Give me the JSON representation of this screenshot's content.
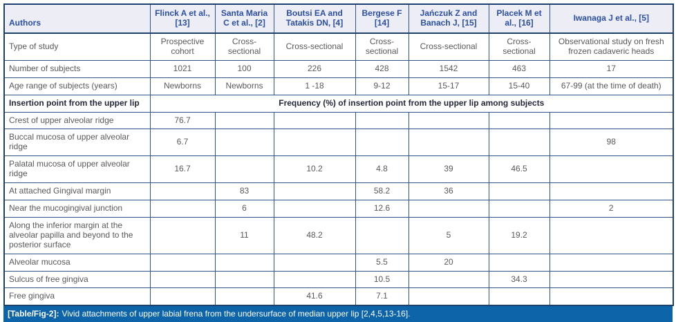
{
  "table": {
    "header": [
      "Authors",
      "Flinck A et al., [13]",
      "Santa Maria C et al., [2]",
      "Boutsi EA and Tatakis DN, [4]",
      "Bergese F [14]",
      "Jańczuk Z and Banach J, [15]",
      "Placek M et al., [16]",
      "Iwanaga J et al., [5]"
    ],
    "rows": [
      {
        "label": "Type of study",
        "cells": [
          "Prospective cohort",
          "Cross-sectional",
          "Cross-sectional",
          "Cross-sectional",
          "Cross-sectional",
          "Cross-sectional",
          "Observational study on fresh frozen cadaveric heads"
        ]
      },
      {
        "label": "Number of subjects",
        "cells": [
          "1021",
          "100",
          "226",
          "428",
          "1542",
          "463",
          "17"
        ]
      },
      {
        "label": "Age range of subjects (years)",
        "cells": [
          "Newborns",
          "Newborns",
          "1 -18",
          "9-12",
          "15-17",
          "15-40",
          "67-99 (at the time of death)"
        ]
      },
      {
        "label": "Insertion point from the upper lip",
        "span": "Frequency (%) of insertion point from the upper lip among subjects",
        "bold": true
      },
      {
        "label": "Crest of upper alveolar ridge",
        "cells": [
          "76.7",
          "",
          "",
          "",
          "",
          "",
          ""
        ]
      },
      {
        "label": "Buccal mucosa of upper alveolar ridge",
        "cells": [
          "6.7",
          "",
          "",
          "",
          "",
          "",
          "98"
        ]
      },
      {
        "label": "Palatal mucosa of upper alveolar ridge",
        "cells": [
          "16.7",
          "",
          "10.2",
          "4.8",
          "39",
          "46.5",
          ""
        ]
      },
      {
        "label": "At attached Gingival margin",
        "cells": [
          "",
          "83",
          "",
          "58.2",
          "36",
          "",
          ""
        ]
      },
      {
        "label": "Near the mucogingival junction",
        "cells": [
          "",
          "6",
          "",
          "12.6",
          "",
          "",
          "2"
        ]
      },
      {
        "label": "Along the inferior margin at the alveolar papilla and beyond to the posterior surface",
        "cells": [
          "",
          "11",
          "48.2",
          "",
          "5",
          "19.2",
          ""
        ]
      },
      {
        "label": "Alveolar mucosa",
        "cells": [
          "",
          "",
          "",
          "5.5",
          "20",
          "",
          ""
        ]
      },
      {
        "label": "Sulcus of free gingiva",
        "cells": [
          "",
          "",
          "",
          "10.5",
          "",
          "34.3",
          ""
        ]
      },
      {
        "label": "Free gingiva",
        "cells": [
          "",
          "",
          "41.6",
          "7.1",
          "",
          "",
          ""
        ]
      }
    ],
    "caption": {
      "tag": "[Table/Fig-2]:",
      "text": "Vivid attachments of upper labial frena from the undersurface of median upper lip [2,4,5,13-16]."
    }
  },
  "colors": {
    "border_inner": "#2e5388",
    "border_outer": "#1d3f6e",
    "header_bg": "#ecedf5",
    "header_text": "#2b4fa2",
    "body_text": "#58595b",
    "bold_text": "#22283a",
    "caption_bg": "#0e64a9",
    "caption_text": "#ffffff"
  }
}
